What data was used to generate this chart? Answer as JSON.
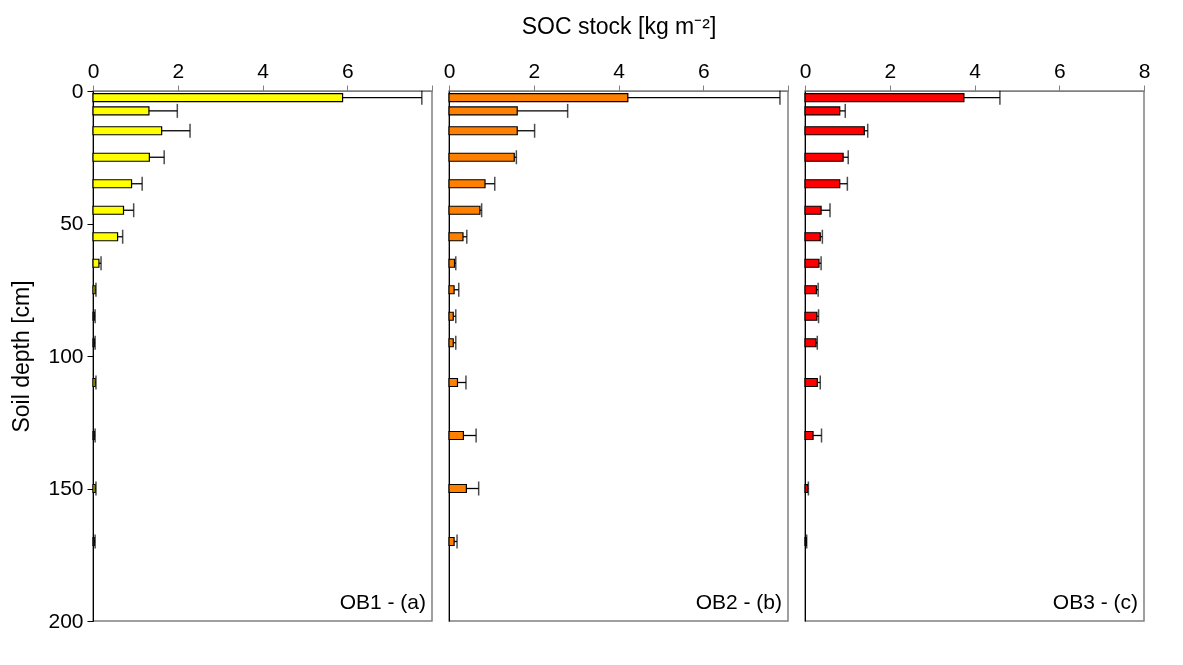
{
  "chart_data": [
    {
      "type": "bar",
      "orientation": "horizontal",
      "ylabel": "Soil depth [cm]",
      "annotations": [
        "OB1 - (a)"
      ],
      "x": [
        2.5,
        7.5,
        15,
        25,
        35,
        45,
        55,
        65,
        75,
        85,
        95,
        110,
        130,
        150,
        170
      ],
      "series": [
        {
          "color": "#ffff00",
          "values": [
            5.89,
            1.32,
            1.62,
            1.33,
            0.91,
            0.72,
            0.58,
            0.14,
            0.05,
            0.03,
            0.03,
            0.05,
            0.03,
            0.05,
            0.03
          ],
          "errors": [
            [
              5.89,
              7.76
            ],
            [
              1.32,
              1.99
            ],
            [
              1.62,
              2.29
            ],
            [
              1.33,
              1.68
            ],
            [
              0.91,
              1.16
            ],
            [
              0.72,
              0.96
            ],
            [
              0.58,
              0.7
            ],
            [
              0.14,
              0.19
            ],
            [
              0.05,
              0.07
            ],
            [
              0.03,
              0.05
            ],
            [
              0.03,
              0.05
            ],
            [
              0.05,
              0.07
            ],
            [
              0.03,
              0.05
            ],
            [
              0.05,
              0.07
            ],
            [
              0.03,
              0.05
            ]
          ]
        }
      ],
      "xlim": [
        0,
        8
      ],
      "xticks": [
        0,
        2,
        4,
        6,
        {
          "value": 8,
          "label": null
        }
      ],
      "ylim": [
        200,
        0
      ],
      "yticks": [
        0,
        50,
        100,
        150,
        200
      ]
    },
    {
      "type": "bar",
      "orientation": "horizontal",
      "xlabel": "SOC stock [kg m⁻²]",
      "annotations": [
        "OB2 - (b)"
      ],
      "x": [
        2.5,
        7.5,
        15,
        25,
        35,
        45,
        55,
        65,
        75,
        85,
        95,
        110,
        130,
        150,
        170
      ],
      "series": [
        {
          "color": "#ff8000",
          "values": [
            4.22,
            1.61,
            1.61,
            1.54,
            0.85,
            0.73,
            0.33,
            0.13,
            0.12,
            0.1,
            0.1,
            0.2,
            0.34,
            0.41,
            0.12
          ],
          "errors": [
            [
              4.22,
              7.81
            ],
            [
              1.61,
              2.8
            ],
            [
              1.61,
              2.02
            ],
            [
              1.54,
              1.59
            ],
            [
              0.85,
              1.08
            ],
            [
              0.73,
              0.77
            ],
            [
              0.33,
              0.42
            ],
            [
              0.13,
              0.16
            ],
            [
              0.12,
              0.23
            ],
            [
              0.1,
              0.16
            ],
            [
              0.1,
              0.16
            ],
            [
              0.2,
              0.4
            ],
            [
              0.34,
              0.64
            ],
            [
              0.41,
              0.7
            ],
            [
              0.12,
              0.19
            ]
          ]
        }
      ],
      "xlim": [
        0,
        8
      ],
      "xticks": [
        0,
        2,
        4,
        6,
        {
          "value": 8,
          "label": null
        }
      ],
      "ylim": [
        200,
        0
      ],
      "yticks": [
        0,
        50,
        100,
        150,
        200
      ],
      "tick_labels": "x"
    },
    {
      "type": "bar",
      "orientation": "horizontal",
      "annotations": [
        "OB3 - (c)"
      ],
      "x": [
        2.5,
        7.5,
        15,
        25,
        35,
        45,
        55,
        65,
        75,
        85,
        95,
        110,
        130,
        150,
        170
      ],
      "series": [
        {
          "color": "#ff0000",
          "values": [
            3.75,
            0.82,
            1.4,
            0.9,
            0.82,
            0.38,
            0.36,
            0.33,
            0.27,
            0.28,
            0.26,
            0.29,
            0.19,
            0.06,
            0.03
          ],
          "errors": [
            [
              3.75,
              4.6
            ],
            [
              0.82,
              0.95
            ],
            [
              1.4,
              1.48
            ],
            [
              0.9,
              1.02
            ],
            [
              0.82,
              1.0
            ],
            [
              0.38,
              0.59
            ],
            [
              0.36,
              0.41
            ],
            [
              0.33,
              0.38
            ],
            [
              0.27,
              0.31
            ],
            [
              0.28,
              0.32
            ],
            [
              0.26,
              0.29
            ],
            [
              0.29,
              0.36
            ],
            [
              0.19,
              0.39
            ],
            [
              0.06,
              0.08
            ],
            [
              0.03,
              0.04
            ]
          ]
        }
      ],
      "xlim": [
        0,
        8
      ],
      "xticks": [
        0,
        2,
        4,
        6,
        8
      ],
      "ylim": [
        200,
        0
      ],
      "yticks": [
        0,
        50,
        100,
        150,
        200
      ],
      "tick_labels": "x"
    }
  ]
}
